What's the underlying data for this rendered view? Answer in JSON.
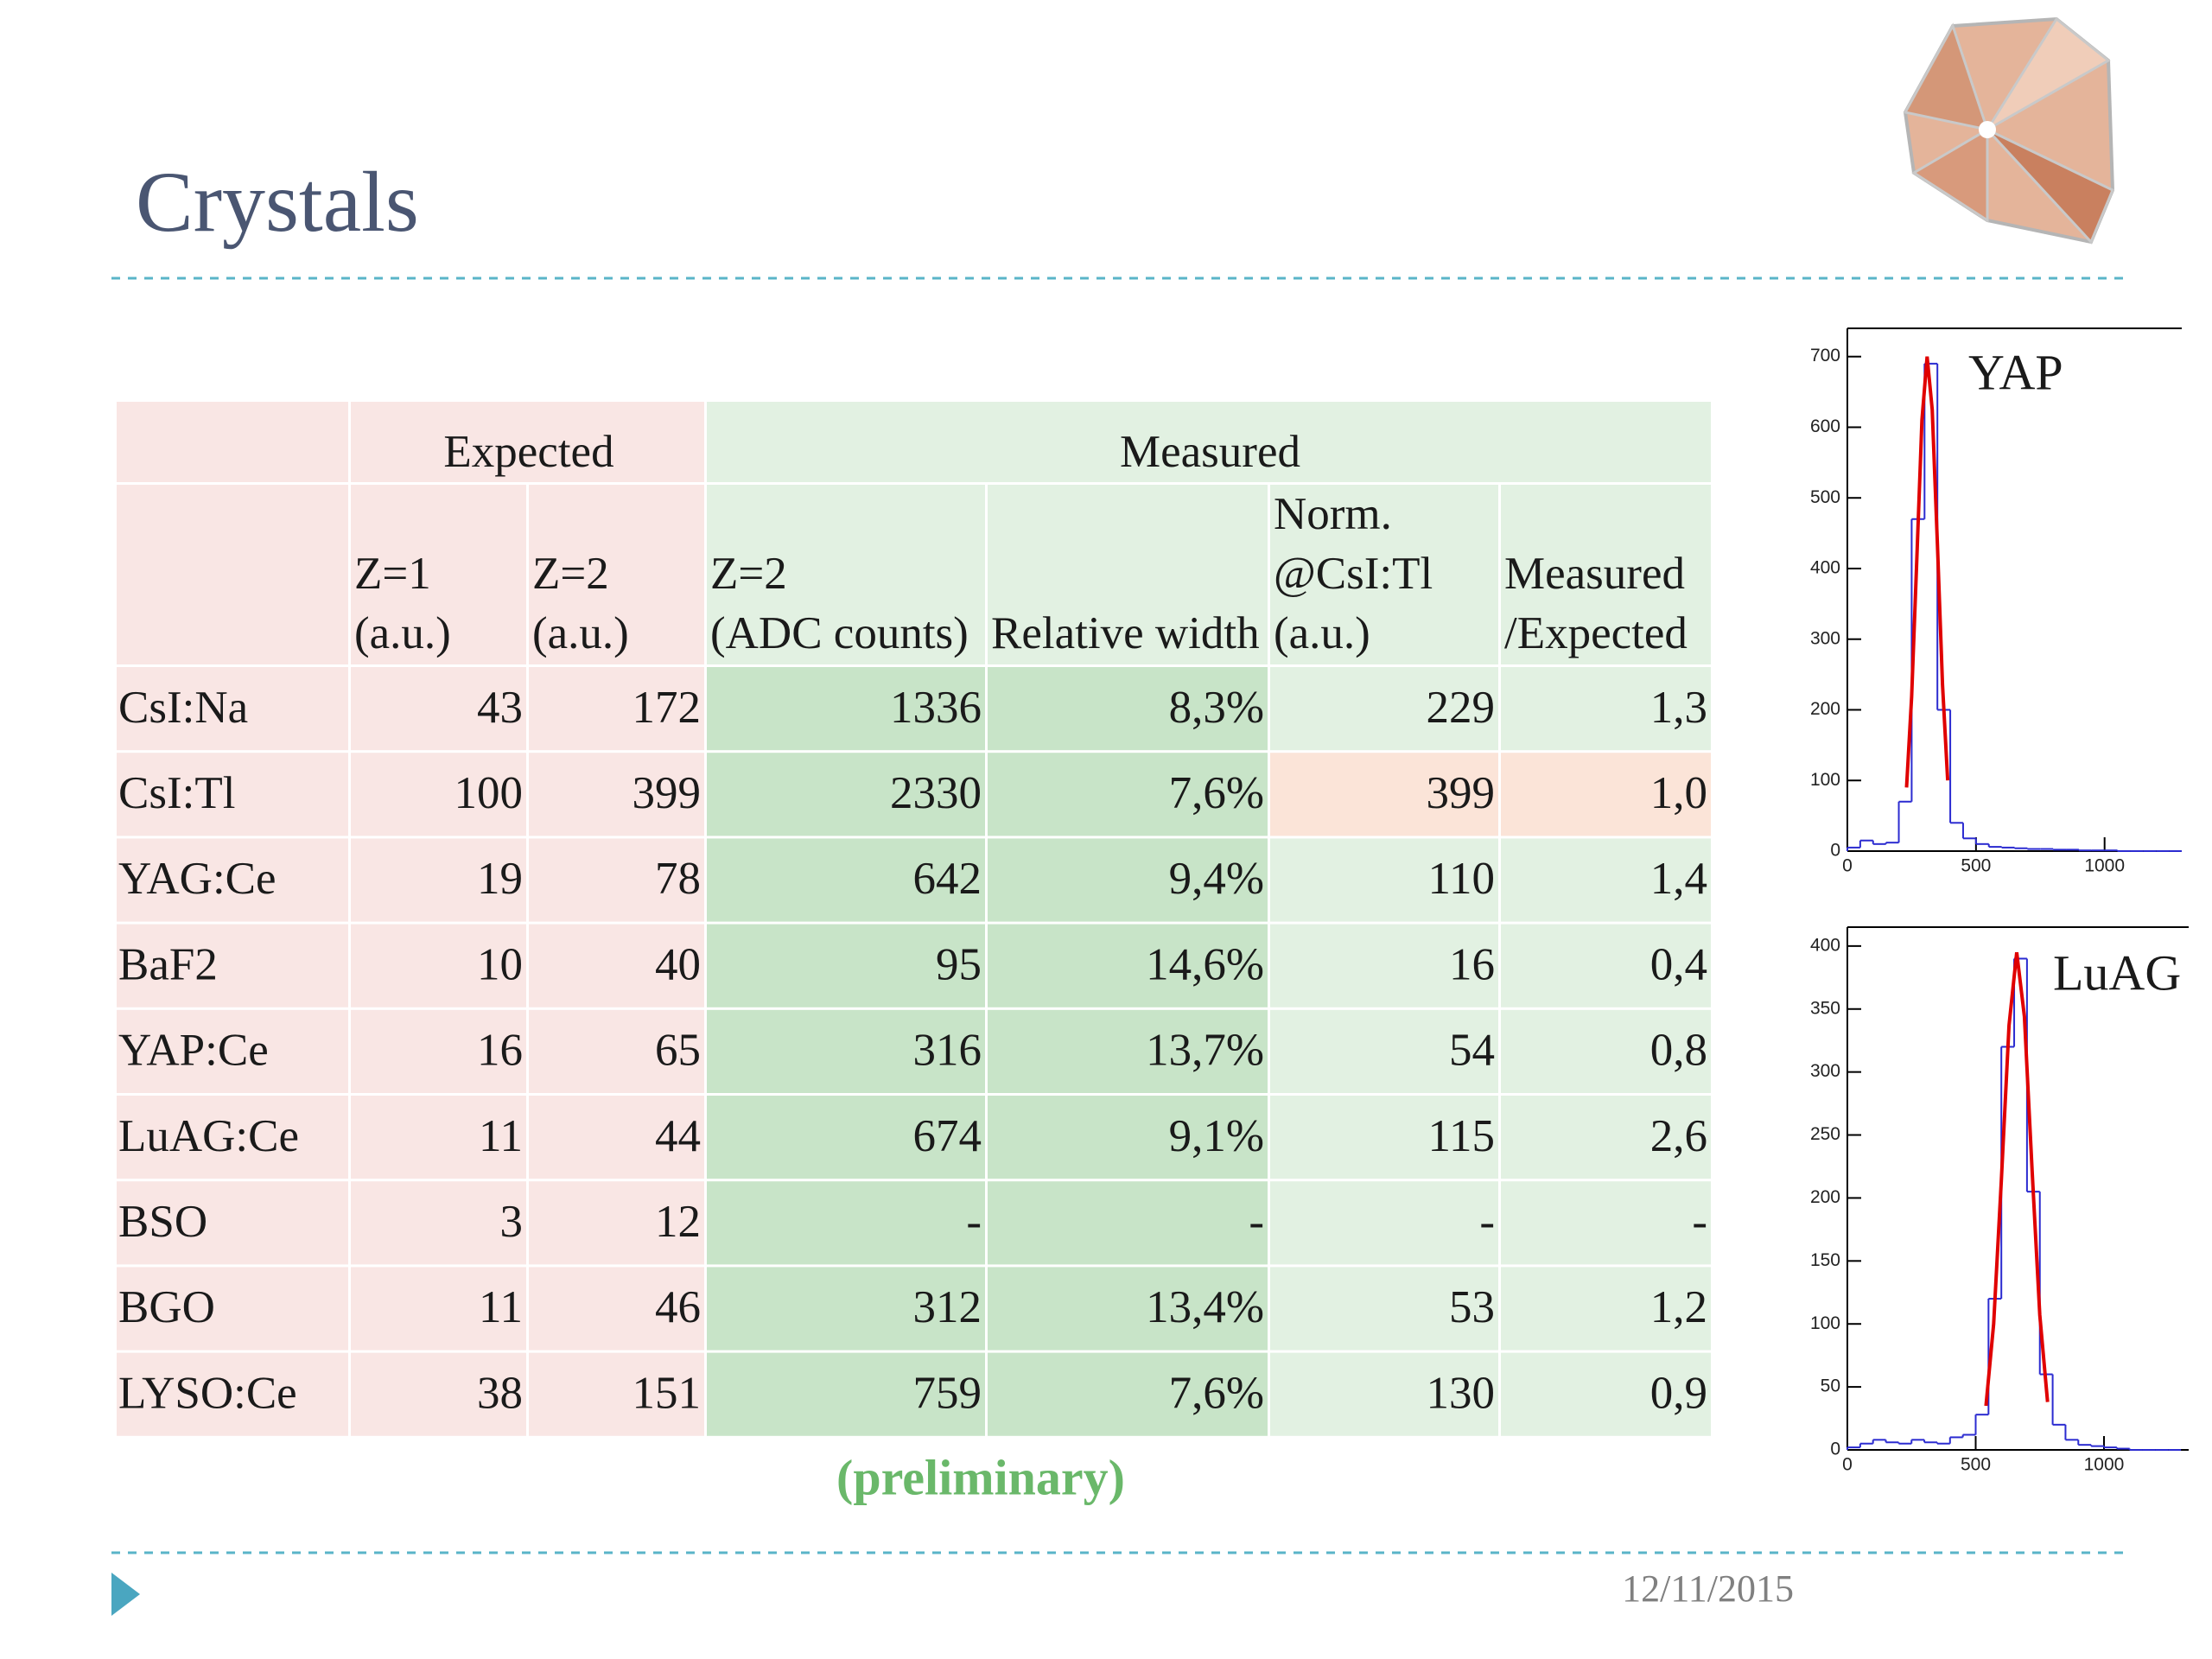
{
  "title": "Crystals",
  "table": {
    "group_headers": [
      "Expected",
      "Measured"
    ],
    "column_headers": [
      [
        "Z=1",
        "(a.u.)"
      ],
      [
        "Z=2",
        "(a.u.)"
      ],
      [
        "Z=2",
        "(ADC counts)"
      ],
      [
        "Relative width"
      ],
      [
        "Norm.",
        "@CsI:Tl",
        "(a.u.)"
      ],
      [
        "Measured",
        "/Expected"
      ]
    ],
    "rows": [
      [
        "CsI:Na",
        "43",
        "172",
        "1336",
        "8,3%",
        "229",
        "1,3"
      ],
      [
        "CsI:Tl",
        "100",
        "399",
        "2330",
        "7,6%",
        "399",
        "1,0"
      ],
      [
        "YAG:Ce",
        "19",
        "78",
        "642",
        "9,4%",
        "110",
        "1,4"
      ],
      [
        "BaF2",
        "10",
        "40",
        "95",
        "14,6%",
        "16",
        "0,4"
      ],
      [
        "YAP:Ce",
        "16",
        "65",
        "316",
        "13,7%",
        "54",
        "0,8"
      ],
      [
        "LuAG:Ce",
        "11",
        "44",
        "674",
        "9,1%",
        "115",
        "2,6"
      ],
      [
        "BSO",
        "3",
        "12",
        "-",
        "-",
        "-",
        "-"
      ],
      [
        "BGO",
        "11",
        "46",
        "312",
        "13,4%",
        "53",
        "1,2"
      ],
      [
        "LYSO:Ce",
        "38",
        "151",
        "759",
        "7,6%",
        "130",
        "0,9"
      ]
    ]
  },
  "note": "(preliminary)",
  "date": "12/11/2015",
  "chart_data": [
    {
      "type": "histogram",
      "label": "YAP",
      "bins": [
        0,
        50,
        100,
        150,
        200,
        250,
        300,
        350,
        400,
        450,
        500,
        550,
        600,
        650,
        700,
        750,
        800,
        850,
        900,
        950,
        1000,
        1050,
        1100,
        1150,
        1200,
        1250,
        1300
      ],
      "values": [
        5,
        15,
        10,
        12,
        70,
        470,
        690,
        200,
        40,
        18,
        10,
        6,
        5,
        4,
        3,
        3,
        2,
        2,
        1,
        1,
        1,
        0,
        0,
        0,
        0,
        0
      ],
      "color": "#2b2bd0",
      "series": [
        {
          "color": "#e00000",
          "x": [
            230,
            250,
            270,
            290,
            310,
            330,
            350,
            370,
            390
          ],
          "values": [
            90,
            219,
            414,
            610,
            700,
            625,
            435,
            236,
            100
          ]
        }
      ],
      "xlim": [
        0,
        1300
      ],
      "ylim": [
        0,
        740
      ],
      "xticks": [
        0,
        500,
        1000
      ],
      "yticks": [
        0,
        100,
        200,
        300,
        400,
        500,
        600,
        700
      ]
    },
    {
      "type": "histogram",
      "label": "LuAG",
      "bins": [
        0,
        50,
        100,
        150,
        200,
        250,
        300,
        350,
        400,
        450,
        500,
        550,
        600,
        650,
        700,
        750,
        800,
        850,
        900,
        950,
        1000,
        1050,
        1100,
        1150,
        1200,
        1250,
        1300
      ],
      "values": [
        2,
        5,
        8,
        6,
        5,
        8,
        6,
        5,
        10,
        12,
        28,
        120,
        320,
        390,
        205,
        60,
        20,
        8,
        4,
        3,
        2,
        1,
        0,
        0,
        0,
        0
      ],
      "color": "#2b2bd0",
      "series": [
        {
          "color": "#e00000",
          "x": [
            540,
            570,
            600,
            630,
            660,
            690,
            720,
            750,
            780
          ],
          "values": [
            35,
            100,
            214,
            337,
            395,
            344,
            222,
            107,
            38
          ]
        }
      ],
      "xlim": [
        0,
        1330
      ],
      "ylim": [
        0,
        415
      ],
      "xticks": [
        0,
        500,
        1000
      ],
      "yticks": [
        0,
        50,
        100,
        150,
        200,
        250,
        300,
        350,
        400
      ]
    }
  ]
}
